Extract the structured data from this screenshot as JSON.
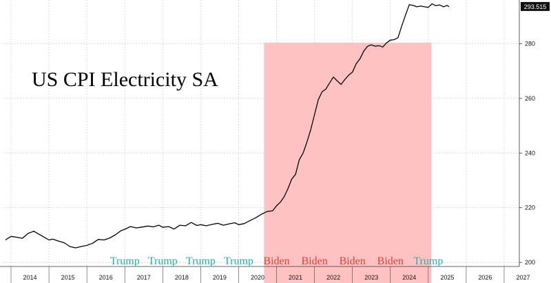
{
  "chart_data": {
    "type": "line",
    "title": "US CPI Electricity SA",
    "xlabel": "",
    "ylabel": "",
    "xlim": [
      2013.8,
      2027.4
    ],
    "ylim": [
      198.5,
      296
    ],
    "yticks": [
      200,
      220,
      240,
      260,
      280
    ],
    "xtick_labels": [
      "2014",
      "2015",
      "2016",
      "2017",
      "2018",
      "2019",
      "2020",
      "2021",
      "2022",
      "2023",
      "2024",
      "2025",
      "2026",
      "2027"
    ],
    "grid": true,
    "last_value_label": "293.515",
    "highlight": {
      "x_start": 2020.67,
      "x_end": 2025.08,
      "color": "#ffc2c2"
    },
    "presidency_labels": [
      {
        "text": "Trump",
        "x": 2017.0,
        "color": "#20b2aa"
      },
      {
        "text": "Trump",
        "x": 2018.0,
        "color": "#20b2aa"
      },
      {
        "text": "Trump",
        "x": 2019.0,
        "color": "#20b2aa"
      },
      {
        "text": "Trump",
        "x": 2020.0,
        "color": "#20b2aa"
      },
      {
        "text": "Biden",
        "x": 2021.0,
        "color": "#e0413a"
      },
      {
        "text": "Biden",
        "x": 2022.0,
        "color": "#e0413a"
      },
      {
        "text": "Biden",
        "x": 2023.0,
        "color": "#e0413a"
      },
      {
        "text": "Biden",
        "x": 2024.0,
        "color": "#e0413a"
      },
      {
        "text": "Trump",
        "x": 2025.0,
        "color": "#20b2aa"
      }
    ],
    "series": [
      {
        "color": "#000000",
        "x": [
          2013.85,
          2014.0,
          2014.15,
          2014.3,
          2014.45,
          2014.6,
          2014.75,
          2014.9,
          2015.0,
          2015.1,
          2015.25,
          2015.4,
          2015.55,
          2015.7,
          2015.85,
          2016.0,
          2016.15,
          2016.3,
          2016.45,
          2016.6,
          2016.75,
          2016.9,
          2017.0,
          2017.15,
          2017.3,
          2017.45,
          2017.6,
          2017.75,
          2017.9,
          2018.0,
          2018.15,
          2018.3,
          2018.45,
          2018.6,
          2018.75,
          2018.9,
          2019.0,
          2019.15,
          2019.3,
          2019.45,
          2019.6,
          2019.75,
          2019.9,
          2020.0,
          2020.15,
          2020.3,
          2020.45,
          2020.6,
          2020.75,
          2020.9,
          2021.0,
          2021.1,
          2021.2,
          2021.3,
          2021.4,
          2021.5,
          2021.6,
          2021.7,
          2021.8,
          2021.9,
          2022.0,
          2022.1,
          2022.2,
          2022.3,
          2022.4,
          2022.5,
          2022.6,
          2022.7,
          2022.8,
          2022.9,
          2023.0,
          2023.1,
          2023.2,
          2023.3,
          2023.4,
          2023.5,
          2023.6,
          2023.7,
          2023.8,
          2023.9,
          2024.0,
          2024.1,
          2024.2,
          2024.3,
          2024.4,
          2024.5,
          2024.6,
          2024.7,
          2024.8,
          2024.9,
          2025.0,
          2025.1,
          2025.2,
          2025.3,
          2025.4,
          2025.5,
          2025.55
        ],
        "y": [
          208.2,
          209.5,
          209.2,
          208.8,
          210.6,
          211.4,
          210.2,
          209.0,
          208.2,
          208.5,
          207.8,
          207.2,
          205.8,
          205.3,
          205.8,
          206.2,
          207.0,
          208.4,
          208.2,
          208.9,
          210.1,
          211.6,
          212.1,
          213.1,
          212.6,
          212.9,
          213.3,
          213.0,
          213.6,
          212.8,
          213.1,
          212.2,
          213.6,
          213.4,
          214.6,
          213.5,
          213.8,
          213.4,
          213.9,
          214.3,
          213.6,
          214.1,
          214.5,
          213.8,
          214.2,
          215.3,
          216.3,
          217.6,
          218.6,
          218.9,
          220.7,
          222.0,
          224.0,
          227.0,
          230.5,
          232.2,
          237.6,
          240.0,
          244.0,
          248.5,
          254.0,
          259.5,
          262.4,
          263.4,
          265.7,
          267.8,
          266.4,
          265.1,
          266.9,
          268.5,
          269.6,
          272.7,
          274.5,
          277.3,
          279.1,
          279.6,
          279.1,
          279.3,
          278.8,
          280.3,
          281.3,
          281.5,
          282.2,
          286.5,
          290.5,
          294.3,
          294.0,
          293.5,
          293.8,
          293.5,
          293.3,
          294.6,
          293.9,
          294.2,
          293.5,
          294.0,
          293.5
        ]
      }
    ]
  }
}
